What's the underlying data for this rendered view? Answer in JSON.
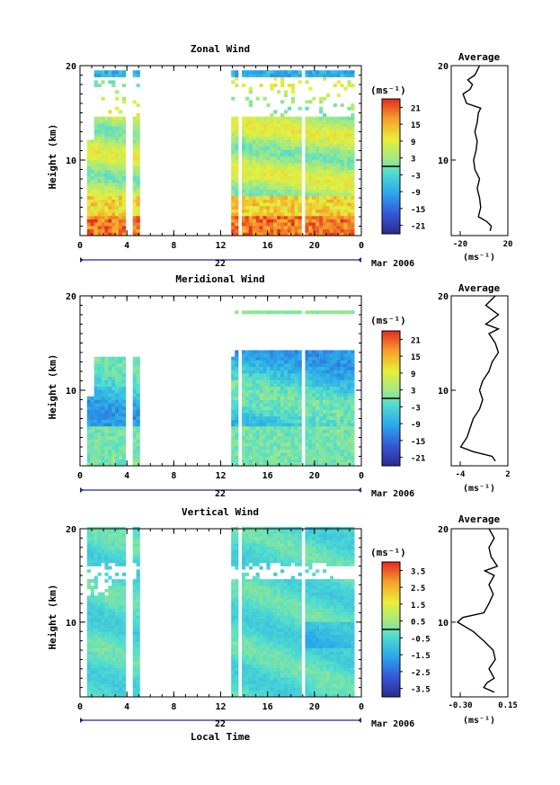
{
  "chart_data": [
    {
      "type": "heatmap",
      "title": "Zonal Wind",
      "ylabel": "Height (km)",
      "xlim": [
        0,
        24
      ],
      "ylim": [
        2,
        20
      ],
      "x_ticks": [
        "0",
        "4",
        "8",
        "12",
        "16",
        "20",
        "0"
      ],
      "y_ticks": [
        "20",
        "10"
      ],
      "gaps_hours": [
        [
          3.8,
          4.2
        ],
        [
          4.8,
          12.8
        ],
        [
          13.3,
          13.6
        ],
        [
          18.7,
          19.0
        ]
      ],
      "colorbar": {
        "unit": "(ms⁻¹)",
        "ticks": [
          "21",
          "15",
          "9",
          "3",
          "-3",
          "-9",
          "-15",
          "-21"
        ],
        "range": [
          -24,
          24
        ]
      },
      "average": {
        "title": "Average",
        "xlabel": "(ms⁻¹)",
        "xticks": [
          "-20",
          "20"
        ],
        "xlim": [
          -28,
          20
        ],
        "heights": [
          2.5,
          3,
          3.5,
          4,
          5,
          6,
          7,
          8,
          9,
          10,
          11,
          12,
          13,
          14,
          15,
          15.5,
          16,
          17,
          17.5,
          18,
          18.5,
          19,
          19.5,
          20
        ],
        "values": [
          5,
          6,
          2,
          -5,
          -3,
          -4,
          -6,
          -4,
          -8,
          -9,
          -7,
          -6,
          -8,
          -6,
          -5,
          -3,
          -15,
          -18,
          -12,
          -10,
          -14,
          -8,
          -6,
          -4
        ]
      }
    },
    {
      "type": "heatmap",
      "title": "Meridional Wind",
      "ylabel": "Height (km)",
      "xlim": [
        0,
        24
      ],
      "ylim": [
        2,
        20
      ],
      "x_ticks": [
        "0",
        "4",
        "8",
        "12",
        "16",
        "20",
        "0"
      ],
      "y_ticks": [
        "20",
        "10"
      ],
      "gaps_hours": [
        [
          3.8,
          4.2
        ],
        [
          4.8,
          12.8
        ],
        [
          13.3,
          13.6
        ],
        [
          18.7,
          19.0
        ]
      ],
      "colorbar": {
        "unit": "(ms⁻¹)",
        "ticks": [
          "21",
          "15",
          "9",
          "3",
          "-3",
          "-9",
          "-15",
          "-21"
        ],
        "range": [
          -24,
          24
        ]
      },
      "average": {
        "title": "Average",
        "xlabel": "(ms⁻¹)",
        "xticks": [
          "-4",
          "2"
        ],
        "xlim": [
          -5.5,
          3.5
        ],
        "heights": [
          2.5,
          3,
          3.5,
          4,
          5,
          6,
          7,
          8,
          9,
          10,
          11,
          12,
          13,
          14,
          15,
          16,
          16.5,
          17,
          17.5,
          18,
          19,
          20
        ],
        "values": [
          1.5,
          1,
          -2,
          -4,
          -3,
          -2.5,
          -2,
          -1,
          -0.5,
          -1,
          -0.5,
          0.5,
          1,
          2,
          1.5,
          0.5,
          2,
          0,
          1,
          2,
          0,
          1.5
        ]
      }
    },
    {
      "type": "heatmap",
      "title": "Vertical Wind",
      "ylabel": "Height (km)",
      "xlim": [
        0,
        24
      ],
      "ylim": [
        2,
        20
      ],
      "x_ticks": [
        "0",
        "4",
        "8",
        "12",
        "16",
        "20",
        "0"
      ],
      "y_ticks": [
        "20",
        "10"
      ],
      "gaps_hours": [
        [
          3.6,
          4.2
        ],
        [
          4.8,
          12.8
        ],
        [
          13.3,
          13.6
        ],
        [
          18.7,
          19.0
        ]
      ],
      "colorbar": {
        "unit": "(ms⁻¹)",
        "ticks": [
          "3.5",
          "2.5",
          "1.5",
          "0.5",
          "-0.5",
          "-1.5",
          "-2.5",
          "-3.5"
        ],
        "range": [
          -4,
          4
        ]
      },
      "average": {
        "title": "Average",
        "xlabel": "(ms⁻¹)",
        "xticks": [
          "-0.30",
          "0.15"
        ],
        "xlim": [
          -0.36,
          0.18
        ],
        "heights": [
          2.5,
          3,
          3.5,
          4,
          5,
          6,
          7,
          8,
          9,
          10,
          10.5,
          11,
          12,
          13,
          14,
          15,
          15.5,
          16,
          17,
          18,
          19,
          20
        ],
        "values": [
          0.05,
          -0.05,
          -0.02,
          0.05,
          0.0,
          0.06,
          0.04,
          -0.05,
          -0.15,
          -0.3,
          -0.25,
          -0.05,
          0.0,
          0.04,
          0.0,
          0.05,
          -0.04,
          0.08,
          0.02,
          0.0,
          0.05,
          0.0
        ]
      }
    }
  ],
  "date_label": "22",
  "month_label": "Mar 2006",
  "xlabel": "Local Time"
}
